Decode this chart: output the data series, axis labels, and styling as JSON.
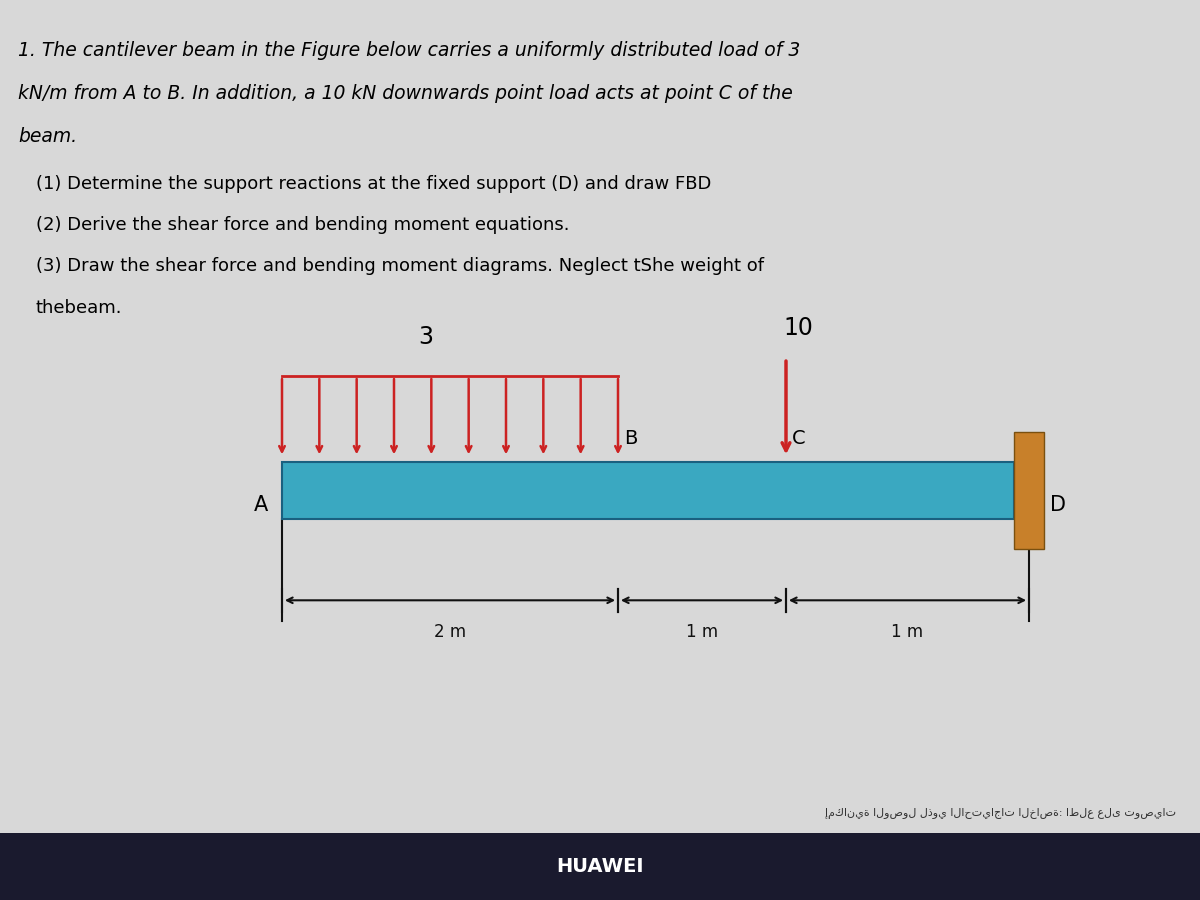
{
  "background_color": "#d8d8d8",
  "text_color": "#000000",
  "title_lines": [
    "1. The cantilever beam in the Figure below carries a uniformly distributed load of 3",
    "kN/m from A to B. In addition, a 10 kN downwards point load acts at point C of the",
    "beam."
  ],
  "subtitle_lines": [
    "(1) Determine the support reactions at the fixed support (D) and draw FBD",
    "(2) Derive the shear force and bending moment equations.",
    "(3) Draw the shear force and bending moment diagrams. Neglect tShe weight of",
    "thebeam."
  ],
  "beam_color": "#3aa8c1",
  "udl_color": "#cc2222",
  "udl_label": "3",
  "point_load_label": "10",
  "support_color": "#c8802a",
  "dim_color": "#111111",
  "label_A": "A",
  "label_B": "B",
  "label_C": "C",
  "label_D": "D",
  "dim_labels": [
    "2 m",
    "1 m",
    "1 m"
  ],
  "bottom_text": "HUAWEI",
  "taskbar_color": "#1a1a2e",
  "arabic_text": "إمكانية الوصول لذوي الاحتياجات الخاصة: اطلع على توصيات"
}
